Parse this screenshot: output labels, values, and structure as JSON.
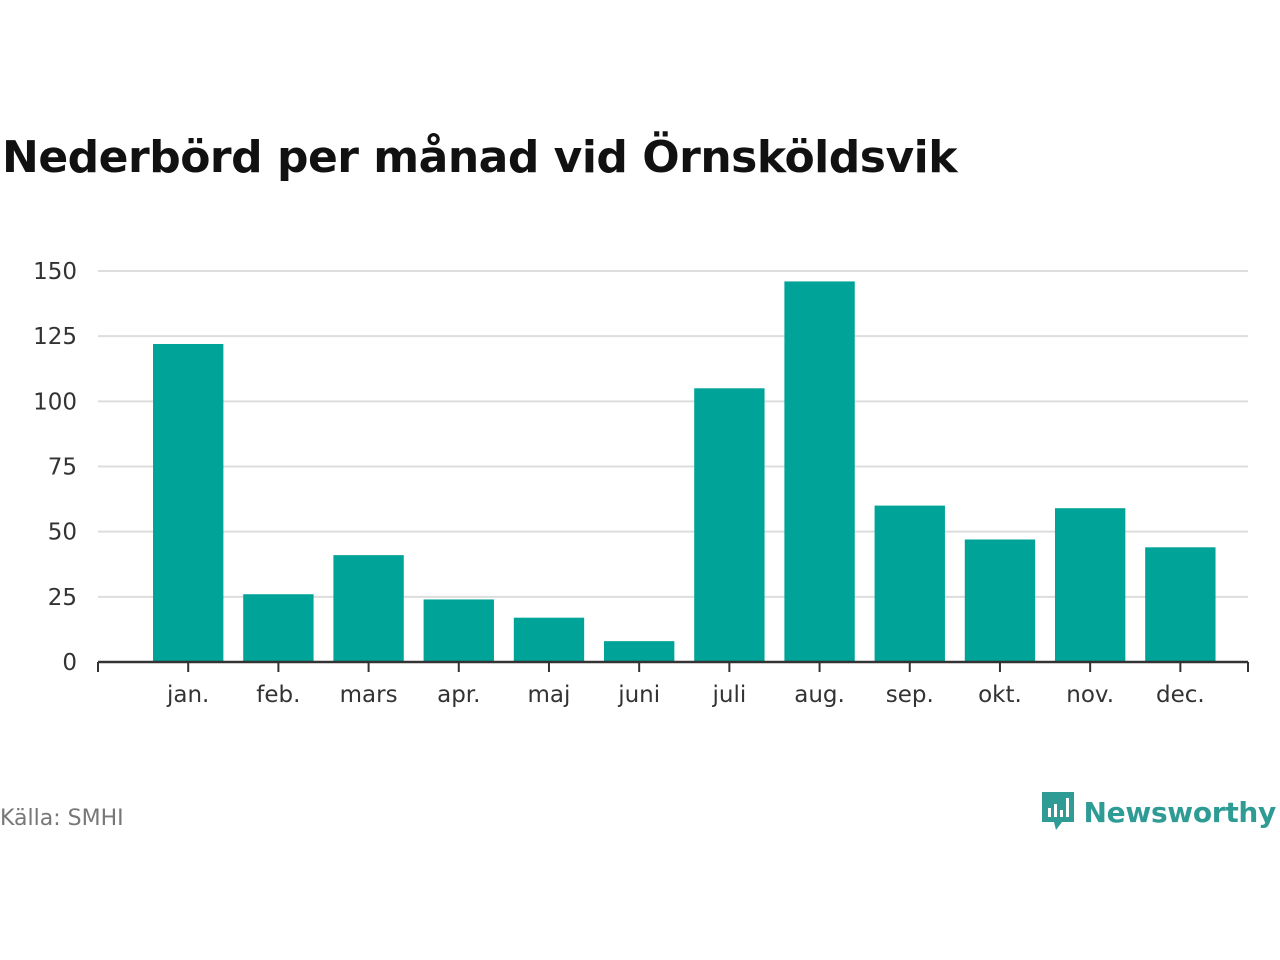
{
  "title": "Nederbörd per månad vid Örnsköldsvik",
  "source": "Källa: SMHI",
  "brand": {
    "name": "Newsworthy",
    "icon": "newsworthy-logo-icon",
    "color": "#2e9c94"
  },
  "colors": {
    "bar": "#00a398",
    "grid": "#dddddd",
    "axis": "#333333"
  },
  "chart_data": {
    "type": "bar",
    "categories": [
      "jan.",
      "feb.",
      "mars",
      "apr.",
      "maj",
      "juni",
      "juli",
      "aug.",
      "sep.",
      "okt.",
      "nov.",
      "dec."
    ],
    "values": [
      122,
      26,
      41,
      24,
      17,
      8,
      105,
      146,
      60,
      47,
      59,
      44
    ],
    "ylim": [
      0,
      150
    ],
    "yticks": [
      0,
      25,
      50,
      75,
      100,
      125,
      150
    ],
    "grid": true,
    "legend": "none"
  }
}
